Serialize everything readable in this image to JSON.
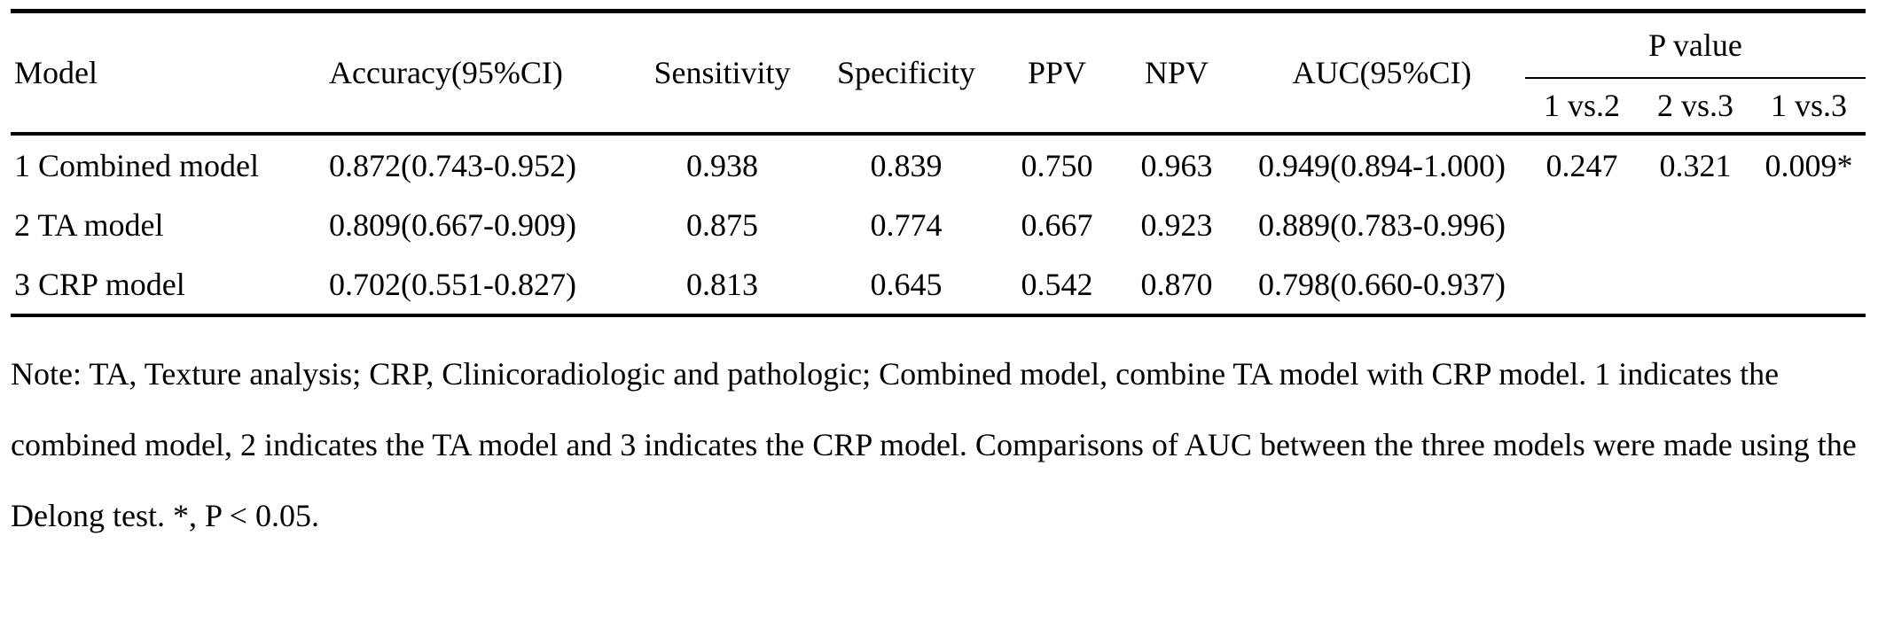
{
  "table": {
    "header": {
      "model": "Model",
      "accuracy": "Accuracy(95%CI)",
      "sensitivity": "Sensitivity",
      "specificity": "Specificity",
      "ppv": "PPV",
      "npv": "NPV",
      "auc": "AUC(95%CI)",
      "p_value_group": "P value",
      "p_sub": [
        "1 vs.2",
        "2 vs.3",
        "1 vs.3"
      ]
    },
    "rows": [
      {
        "model": "1 Combined model",
        "accuracy": "0.872(0.743-0.952)",
        "sensitivity": "0.938",
        "specificity": "0.839",
        "ppv": "0.750",
        "npv": "0.963",
        "auc": "0.949(0.894-1.000)",
        "p12": "0.247",
        "p23": "0.321",
        "p13": "0.009*"
      },
      {
        "model": "2 TA model",
        "accuracy": "0.809(0.667-0.909)",
        "sensitivity": "0.875",
        "specificity": "0.774",
        "ppv": "0.667",
        "npv": "0.923",
        "auc": "0.889(0.783-0.996)",
        "p12": "",
        "p23": "",
        "p13": ""
      },
      {
        "model": "3 CRP model",
        "accuracy": "0.702(0.551-0.827)",
        "sensitivity": "0.813",
        "specificity": "0.645",
        "ppv": "0.542",
        "npv": "0.870",
        "auc": "0.798(0.660-0.937)",
        "p12": "",
        "p23": "",
        "p13": ""
      }
    ],
    "note": "Note: TA, Texture analysis; CRP, Clinicoradiologic and pathologic; Combined model, combine TA model with CRP model. 1 indicates the combined model, 2 indicates the TA model and 3 indicates the CRP model. Comparisons of AUC between the three models were made using the Delong test. *, P < 0.05."
  }
}
